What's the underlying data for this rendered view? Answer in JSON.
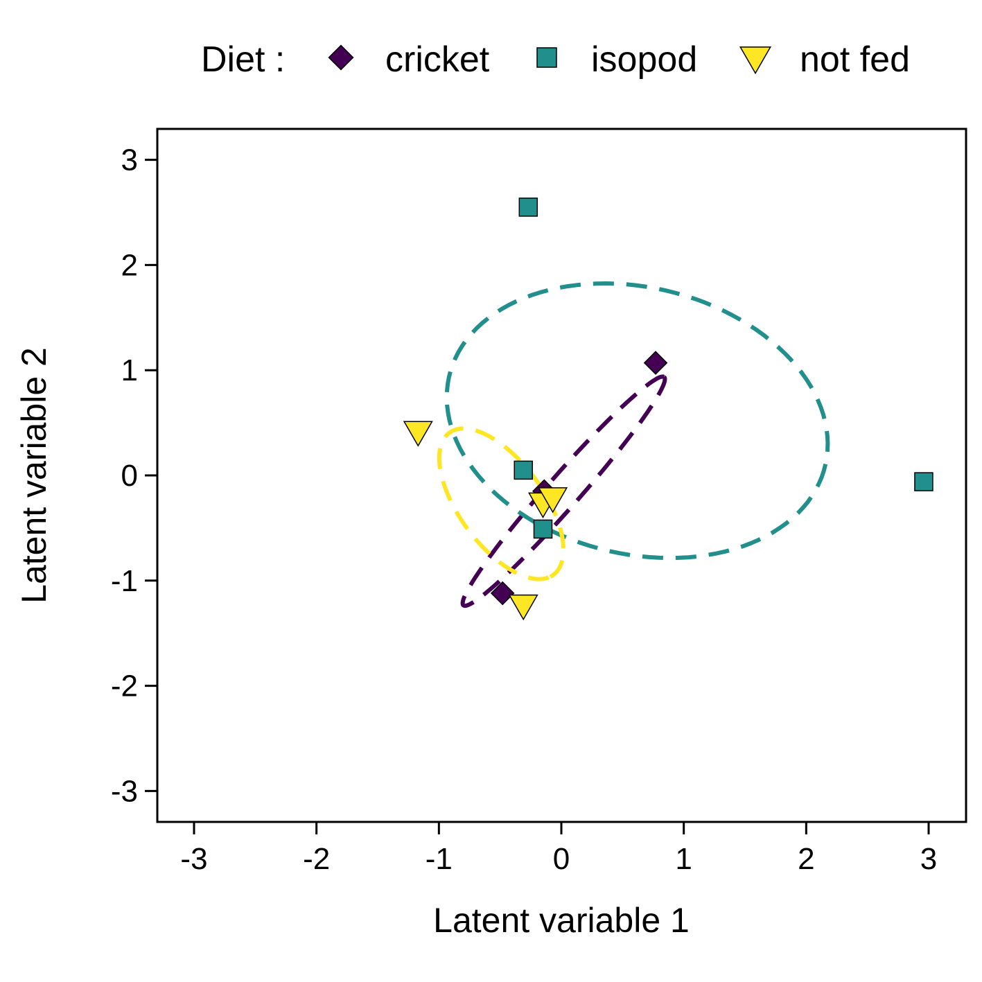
{
  "chart_data": {
    "type": "scatter",
    "xlabel": "Latent variable 1",
    "ylabel": "Latent variable 2",
    "xlim": [
      -3.3,
      3.3
    ],
    "ylim": [
      -3.3,
      3.3
    ],
    "xticks": [
      -3,
      -2,
      -1,
      0,
      1,
      2,
      3
    ],
    "yticks": [
      -3,
      -2,
      -1,
      0,
      1,
      2,
      3
    ],
    "grid": false,
    "legend": {
      "title": "Diet :",
      "placement": "top",
      "entries": [
        "cricket",
        "isopod",
        "not fed"
      ]
    },
    "series": [
      {
        "name": "cricket",
        "marker": "diamond",
        "color": "#440154",
        "points": [
          [
            0.77,
            1.07
          ],
          [
            -0.14,
            -0.15
          ],
          [
            -0.48,
            -1.12
          ]
        ],
        "ellipse": {
          "cx": 0.02,
          "cy": -0.15,
          "rx": 1.36,
          "ry": 0.14,
          "angle_deg": 53,
          "dash": "dashed"
        }
      },
      {
        "name": "isopod",
        "marker": "square",
        "color": "#21908C",
        "points": [
          [
            -0.27,
            2.55
          ],
          [
            -0.31,
            0.05
          ],
          [
            -0.15,
            -0.51
          ],
          [
            2.96,
            -0.06
          ]
        ],
        "ellipse": {
          "cx": 0.62,
          "cy": 0.52,
          "rx": 1.6,
          "ry": 1.25,
          "angle_deg": -22,
          "dash": "dashed"
        }
      },
      {
        "name": "not fed",
        "marker": "triangle-down",
        "color": "#FDE725",
        "points": [
          [
            -1.17,
            0.42
          ],
          [
            -0.15,
            -0.26
          ],
          [
            -0.07,
            -0.21
          ],
          [
            -0.31,
            -1.23
          ]
        ],
        "ellipse": {
          "cx": -0.49,
          "cy": -0.27,
          "rx": 0.8,
          "ry": 0.36,
          "angle_deg": -60,
          "dash": "dashed"
        }
      }
    ]
  }
}
